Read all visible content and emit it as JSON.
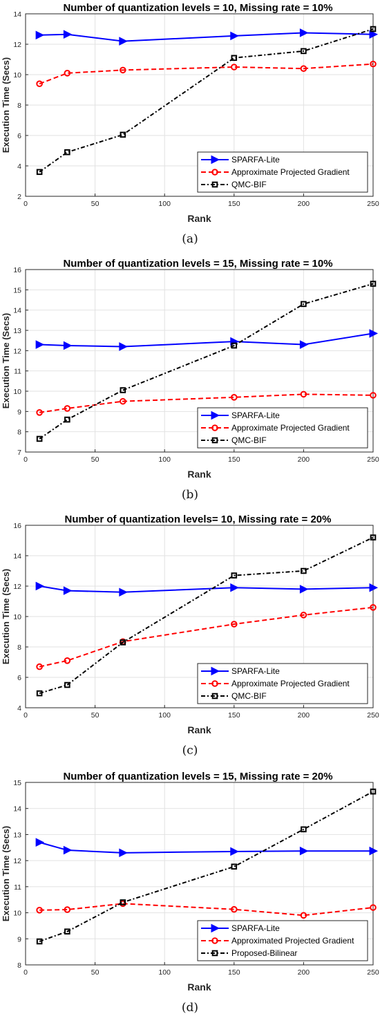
{
  "chart_data": [
    {
      "type": "line",
      "title": "Number of quantization levels = 10, Missing rate = 10%",
      "xlabel": "Rank",
      "ylabel": "Execution Time (Secs)",
      "caption": "(a)",
      "x": [
        10,
        30,
        70,
        150,
        200,
        250
      ],
      "xlim": [
        0,
        250
      ],
      "ylim": [
        2,
        14
      ],
      "xticks": [
        0,
        50,
        100,
        150,
        200,
        250
      ],
      "yticks": [
        2,
        4,
        6,
        8,
        10,
        12,
        14
      ],
      "grid": true,
      "legend_position": "bottom-right",
      "series": [
        {
          "name": "SPARFA-Lite",
          "values": [
            12.6,
            12.65,
            12.2,
            12.55,
            12.75,
            12.65
          ],
          "color": "#0000ff",
          "dash": "solid",
          "marker": "triangle-right"
        },
        {
          "name": "Approximate Projected Gradient",
          "values": [
            9.4,
            10.1,
            10.3,
            10.5,
            10.4,
            10.7
          ],
          "color": "#ff0000",
          "dash": "dashed",
          "marker": "circle"
        },
        {
          "name": "QMC-BIF",
          "values": [
            3.6,
            4.9,
            6.05,
            11.1,
            11.55,
            13.0
          ],
          "color": "#000000",
          "dash": "dashdot",
          "marker": "square"
        }
      ]
    },
    {
      "type": "line",
      "title": "Number of quantization levels = 15, Missing rate = 10%",
      "xlabel": "Rank",
      "ylabel": "Execution Time (Secs)",
      "caption": "(b)",
      "x": [
        10,
        30,
        70,
        150,
        200,
        250
      ],
      "xlim": [
        0,
        250
      ],
      "ylim": [
        7,
        16
      ],
      "xticks": [
        0,
        50,
        100,
        150,
        200,
        250
      ],
      "yticks": [
        7,
        8,
        9,
        10,
        11,
        12,
        13,
        14,
        15,
        16
      ],
      "grid": true,
      "legend_position": "bottom-right",
      "series": [
        {
          "name": "SPARFA-Lite",
          "values": [
            12.3,
            12.25,
            12.2,
            12.45,
            12.3,
            12.85
          ],
          "color": "#0000ff",
          "dash": "solid",
          "marker": "triangle-right"
        },
        {
          "name": "Approximate Projected Gradient",
          "values": [
            8.95,
            9.15,
            9.5,
            9.7,
            9.85,
            9.8
          ],
          "color": "#ff0000",
          "dash": "dashed",
          "marker": "circle"
        },
        {
          "name": "QMC-BIF",
          "values": [
            7.65,
            8.6,
            10.05,
            12.25,
            14.3,
            15.3
          ],
          "color": "#000000",
          "dash": "dashdot",
          "marker": "square"
        }
      ]
    },
    {
      "type": "line",
      "title": "Number of quantization levels= 10, Missing rate = 20%",
      "xlabel": "Rank",
      "ylabel": "Execution Time (Secs)",
      "caption": "(c)",
      "x": [
        10,
        30,
        70,
        150,
        200,
        250
      ],
      "xlim": [
        0,
        250
      ],
      "ylim": [
        4,
        16
      ],
      "xticks": [
        0,
        50,
        100,
        150,
        200,
        250
      ],
      "yticks": [
        4,
        6,
        8,
        10,
        12,
        14,
        16
      ],
      "grid": true,
      "legend_position": "bottom-right",
      "series": [
        {
          "name": "SPARFA-Lite",
          "values": [
            12.0,
            11.7,
            11.6,
            11.9,
            11.8,
            11.9
          ],
          "color": "#0000ff",
          "dash": "solid",
          "marker": "triangle-right"
        },
        {
          "name": "Approximate Projected Gradient",
          "values": [
            6.7,
            7.1,
            8.35,
            9.5,
            10.1,
            10.6
          ],
          "color": "#ff0000",
          "dash": "dashed",
          "marker": "circle"
        },
        {
          "name": "QMC-BIF",
          "values": [
            4.95,
            5.5,
            8.3,
            12.7,
            13.0,
            15.2
          ],
          "color": "#000000",
          "dash": "dashdot",
          "marker": "square"
        }
      ]
    },
    {
      "type": "line",
      "title": "Number of quantization levels = 15, Missing rate = 20%",
      "xlabel": "Rank",
      "ylabel": "Execution Time (Secs)",
      "caption": "(d)",
      "x": [
        10,
        30,
        70,
        150,
        200,
        250
      ],
      "xlim": [
        0,
        250
      ],
      "ylim": [
        8,
        15
      ],
      "xticks": [
        0,
        50,
        100,
        150,
        200,
        250
      ],
      "yticks": [
        8,
        9,
        10,
        11,
        12,
        13,
        14,
        15
      ],
      "grid": true,
      "legend_position": "bottom-right",
      "series": [
        {
          "name": "SPARFA-Lite",
          "values": [
            12.7,
            12.4,
            12.3,
            12.35,
            12.37,
            12.37
          ],
          "color": "#0000ff",
          "dash": "solid",
          "marker": "triangle-right"
        },
        {
          "name": "Approximated Projected Gradient",
          "values": [
            10.1,
            10.12,
            10.35,
            10.13,
            9.9,
            10.2
          ],
          "color": "#ff0000",
          "dash": "dashed",
          "marker": "circle"
        },
        {
          "name": "Proposed-Bilinear",
          "values": [
            8.9,
            9.28,
            10.4,
            11.77,
            13.2,
            14.65
          ],
          "color": "#000000",
          "dash": "dashdot",
          "marker": "square"
        }
      ]
    }
  ]
}
